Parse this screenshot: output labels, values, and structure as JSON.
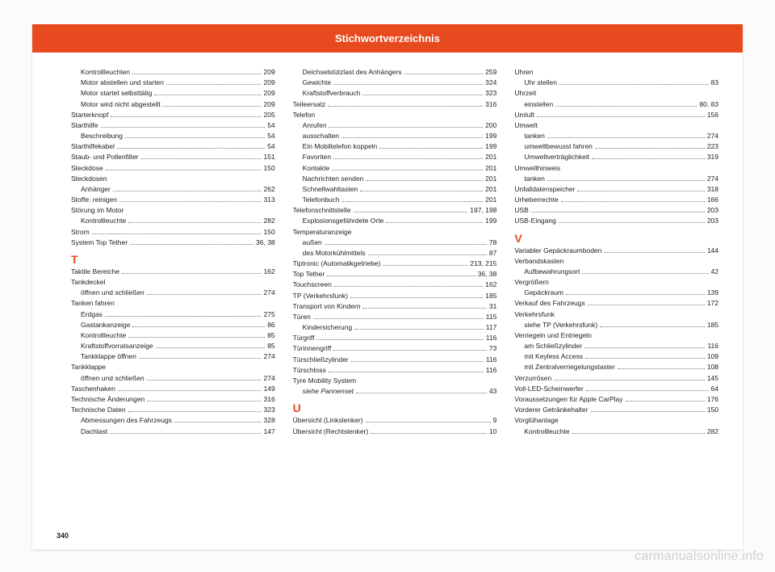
{
  "header_title": "Stichwortverzeichnis",
  "page_number": "340",
  "watermark": "carmanualsonline.info",
  "columns": [
    [
      {
        "label": "Kontrollleuchten",
        "page": "209",
        "indent": true
      },
      {
        "label": "Motor abstellen und starten",
        "page": "209",
        "indent": true
      },
      {
        "label": "Motor startet selbsttätig",
        "page": "209",
        "indent": true
      },
      {
        "label": "Motor wird nicht abgestellt",
        "page": "209",
        "indent": true
      },
      {
        "label": "Starterknopf",
        "page": "205"
      },
      {
        "label": "Starthilfe",
        "page": "54"
      },
      {
        "label": "Beschreibung",
        "page": "54",
        "indent": true
      },
      {
        "label": "Starthilfekabel",
        "page": "54"
      },
      {
        "label": "Staub- und Pollenfilter",
        "page": "151"
      },
      {
        "label": "Steckdose",
        "page": "150"
      },
      {
        "label": "Steckdosen",
        "page": ""
      },
      {
        "label": "Anhänger",
        "page": "262",
        "indent": true
      },
      {
        "label": "Stoffe: reinigen",
        "page": "313"
      },
      {
        "label": "Störung im Motor",
        "page": ""
      },
      {
        "label": "Kontrollleuchte",
        "page": "282",
        "indent": true
      },
      {
        "label": "Strom",
        "page": "150"
      },
      {
        "label": "System Top Tether",
        "page": "36, 38"
      },
      {
        "letter": "T"
      },
      {
        "label": "Taktile Bereiche",
        "page": "162"
      },
      {
        "label": "Tankdeckel",
        "page": ""
      },
      {
        "label": "öffnen und schließen",
        "page": "274",
        "indent": true
      },
      {
        "label": "Tanken fahren",
        "page": ""
      },
      {
        "label": "Erdgas",
        "page": "275",
        "indent": true
      },
      {
        "label": "Gastankanzeige",
        "page": "86",
        "indent": true
      },
      {
        "label": "Kontrollleuchte",
        "page": "85",
        "indent": true
      },
      {
        "label": "Kraftstoffvorratsanzeige",
        "page": "85",
        "indent": true
      },
      {
        "label": "Tankklappe öffnen",
        "page": "274",
        "indent": true
      },
      {
        "label": "Tankklappe",
        "page": ""
      },
      {
        "label": "öffnen und schließen",
        "page": "274",
        "indent": true
      },
      {
        "label": "Taschenhaken",
        "page": "149"
      },
      {
        "label": "Technische Änderungen",
        "page": "316"
      },
      {
        "label": "Technische Daten",
        "page": "323"
      },
      {
        "label": "Abmessungen des Fahrzeugs",
        "page": "328",
        "indent": true
      },
      {
        "label": "Dachlast",
        "page": "147",
        "indent": true
      }
    ],
    [
      {
        "label": "Deichselstützlast des Anhängers",
        "page": "259",
        "indent": true
      },
      {
        "label": "Gewichte",
        "page": "324",
        "indent": true
      },
      {
        "label": "Kraftstoffverbrauch",
        "page": "323",
        "indent": true
      },
      {
        "label": "Teileersatz",
        "page": "316"
      },
      {
        "label": "Telefon",
        "page": ""
      },
      {
        "label": "Anrufen",
        "page": "200",
        "indent": true
      },
      {
        "label": "ausschalten",
        "page": "199",
        "indent": true
      },
      {
        "label": "Ein Mobiltelefon koppeln",
        "page": "199",
        "indent": true
      },
      {
        "label": "Favoriten",
        "page": "201",
        "indent": true
      },
      {
        "label": "Kontakte",
        "page": "201",
        "indent": true
      },
      {
        "label": "Nachrichten senden",
        "page": "201",
        "indent": true
      },
      {
        "label": "Schnellwahltasten",
        "page": "201",
        "indent": true
      },
      {
        "label": "Telefonbuch",
        "page": "201",
        "indent": true
      },
      {
        "label": "Telefonschnittstelle",
        "page": "197, 198"
      },
      {
        "label": "Explosionsgefährdete Orte",
        "page": "199",
        "indent": true
      },
      {
        "label": "Temperaturanzeige",
        "page": ""
      },
      {
        "label": "außen",
        "page": "78",
        "indent": true
      },
      {
        "label": "des Motorkühlmittels",
        "page": "87",
        "indent": true
      },
      {
        "label": "Tiptronic (Automatikgetriebe)",
        "page": "213, 215"
      },
      {
        "label": "Top Tether",
        "page": "36, 38"
      },
      {
        "label": "Touchscreen",
        "page": "162"
      },
      {
        "label": "TP (Verkehrsfunk)",
        "page": "185"
      },
      {
        "label": "Transport von Kindern",
        "page": "31"
      },
      {
        "label": "Türen",
        "page": "115"
      },
      {
        "label": "Kindersicherung",
        "page": "117",
        "indent": true
      },
      {
        "label": "Türgriff",
        "page": "116"
      },
      {
        "label": "Türinnengriff",
        "page": "73"
      },
      {
        "label": "Türschließzylinder",
        "page": "116"
      },
      {
        "label": "Türschloss",
        "page": "116"
      },
      {
        "label": "Tyre Mobility System",
        "page": ""
      },
      {
        "label": "siehe Pannenset",
        "page": "43",
        "indent": true,
        "italic": true
      },
      {
        "letter": "U"
      },
      {
        "label": "Übersicht (Linkslenker)",
        "page": "9"
      },
      {
        "label": "Übersicht (Rechtslenker)",
        "page": "10"
      }
    ],
    [
      {
        "label": "Uhren",
        "page": ""
      },
      {
        "label": "Uhr stellen",
        "page": "83",
        "indent": true
      },
      {
        "label": "Uhrzeit",
        "page": ""
      },
      {
        "label": "einstellen",
        "page": "80, 83",
        "indent": true
      },
      {
        "label": "Umluft",
        "page": "156"
      },
      {
        "label": "Umwelt",
        "page": ""
      },
      {
        "label": "tanken",
        "page": "274",
        "indent": true
      },
      {
        "label": "umweltbewusst fahren",
        "page": "223",
        "indent": true
      },
      {
        "label": "Umweltverträglichkeit",
        "page": "319",
        "indent": true
      },
      {
        "label": "Umwelthinweis",
        "page": ""
      },
      {
        "label": "tanken",
        "page": "274",
        "indent": true
      },
      {
        "label": "Unfalldatenspeicher",
        "page": "318"
      },
      {
        "label": "Urheberrechte",
        "page": "166"
      },
      {
        "label": "USB",
        "page": "203"
      },
      {
        "label": "USB-Eingang",
        "page": "203"
      },
      {
        "letter": "V"
      },
      {
        "label": "Variabler Gepäckraumboden",
        "page": "144"
      },
      {
        "label": "Verbandskasten",
        "page": ""
      },
      {
        "label": "Aufbewahrungsort",
        "page": "42",
        "indent": true
      },
      {
        "label": "Vergrößern",
        "page": ""
      },
      {
        "label": "Gepäckraum",
        "page": "139",
        "indent": true
      },
      {
        "label": "Verkauf des Fahrzeugs",
        "page": "172"
      },
      {
        "label": "Verkehrsfunk",
        "page": ""
      },
      {
        "label": "siehe TP (Verkehrsfunk)",
        "page": "185",
        "indent": true
      },
      {
        "label": "Verriegeln und Entriegeln",
        "page": ""
      },
      {
        "label": "am Schließzylinder",
        "page": "116",
        "indent": true
      },
      {
        "label": "mit Keyless Access",
        "page": "109",
        "indent": true
      },
      {
        "label": "mit Zentralverriegelungstaster",
        "page": "108",
        "indent": true
      },
      {
        "label": "Verzurrösen",
        "page": "145"
      },
      {
        "label": "Voll-LED-Scheinwerfer",
        "page": "64"
      },
      {
        "label": "Voraussetzungen für Apple CarPlay",
        "page": "176"
      },
      {
        "label": "Vorderer Getränkehalter",
        "page": "150"
      },
      {
        "label": "Vorglühanlage",
        "page": ""
      },
      {
        "label": "Kontrollleuchte",
        "page": "282",
        "indent": true
      }
    ]
  ]
}
